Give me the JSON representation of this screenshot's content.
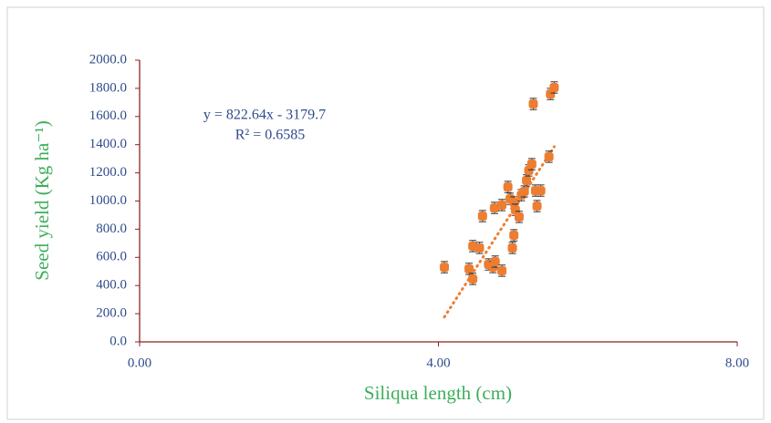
{
  "chart_data": {
    "type": "scatter",
    "x_label": "Siliqua length (cm)",
    "y_label": "Seed yield (Kg ha⁻¹)",
    "x": [
      4.08,
      4.41,
      4.46,
      4.46,
      4.55,
      4.59,
      4.67,
      4.73,
      4.76,
      4.85,
      4.75,
      4.85,
      4.93,
      4.96,
      5.01,
      5.03,
      5.01,
      4.99,
      5.08,
      5.11,
      5.15,
      5.18,
      5.21,
      5.25,
      5.27,
      5.3,
      5.32,
      5.37,
      5.48,
      5.5,
      5.55
    ],
    "series": [
      {
        "color": "#ed7d31",
        "values": [
          530,
          518,
          447,
          680,
          667,
          893,
          550,
          531,
          570,
          505,
          951,
          971,
          1100,
          1016,
          990,
          938,
          757,
          667,
          887,
          1042,
          1068,
          1146,
          1217,
          1262,
          1689,
          1074,
          964,
          1074,
          1314,
          1760,
          1806
        ],
        "errors": [
          40,
          40,
          40,
          40,
          40,
          40,
          40,
          40,
          40,
          40,
          40,
          40,
          40,
          40,
          40,
          40,
          40,
          40,
          40,
          40,
          40,
          40,
          40,
          40,
          40,
          40,
          40,
          40,
          40,
          40,
          40
        ]
      }
    ],
    "trendline": {
      "slope": 822.64,
      "intercept": -3179.7,
      "equation": "y = 822.64x - 3179.7",
      "r2_label": "R² = 0.6585",
      "color": "#ed7d31"
    },
    "xlim": [
      0,
      8
    ],
    "xticks": [
      {
        "value": 0,
        "label": "0.00"
      },
      {
        "value": 4,
        "label": "4.00"
      },
      {
        "value": 8,
        "label": "8.00"
      }
    ],
    "ylim": [
      0,
      2000
    ],
    "yticks": [
      {
        "value": 0,
        "label": "0.0"
      },
      {
        "value": 200,
        "label": "200.0"
      },
      {
        "value": 400,
        "label": "400.0"
      },
      {
        "value": 600,
        "label": "600.0"
      },
      {
        "value": 800,
        "label": "800.0"
      },
      {
        "value": 1000,
        "label": "1000.0"
      },
      {
        "value": 1200,
        "label": "1200.0"
      },
      {
        "value": 1400,
        "label": "1400.0"
      },
      {
        "value": 1600,
        "label": "1600.0"
      },
      {
        "value": 1800,
        "label": "1800.0"
      },
      {
        "value": 2000,
        "label": "2000.0"
      }
    ],
    "grid": false
  }
}
